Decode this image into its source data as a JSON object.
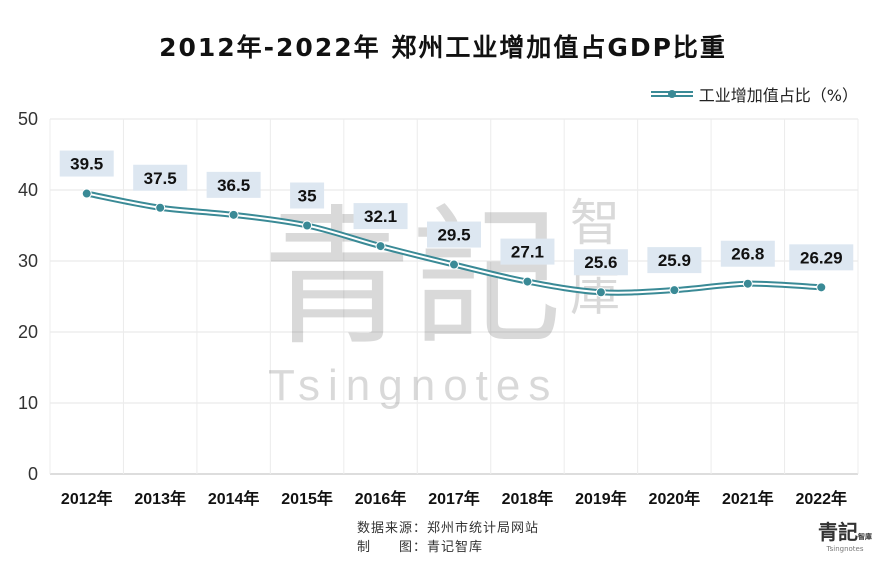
{
  "chart_data": {
    "type": "line",
    "title": "2012年-2022年 郑州工业增加值占GDP比重",
    "categories": [
      "2012年",
      "2013年",
      "2014年",
      "2015年",
      "2016年",
      "2017年",
      "2018年",
      "2019年",
      "2020年",
      "2021年",
      "2022年"
    ],
    "series": [
      {
        "name": "工业增加值占比（%）",
        "values": [
          39.5,
          37.5,
          36.5,
          35,
          32.1,
          29.5,
          27.1,
          25.6,
          25.9,
          26.8,
          26.29
        ],
        "labels": [
          "39.5",
          "37.5",
          "36.5",
          "35",
          "32.1",
          "29.5",
          "27.1",
          "25.6",
          "25.9",
          "26.8",
          "26.29"
        ]
      }
    ],
    "ylim": [
      0,
      50
    ],
    "yticks": [
      "0",
      "10",
      "20",
      "30",
      "40",
      "50"
    ],
    "grid": true,
    "legend": "top-right",
    "colors": {
      "line": "#3a8a96",
      "label_bg": "#dde7f1"
    }
  },
  "footer": {
    "source": "数据来源：郑州市统计局网站",
    "maker": "制　　图：青记智库"
  },
  "watermark": {
    "main": "青記",
    "side": "智庫",
    "latin": "Tsingnotes"
  },
  "logo": {
    "main": "青記",
    "side": "智庫",
    "latin": "Tsingnotes"
  }
}
